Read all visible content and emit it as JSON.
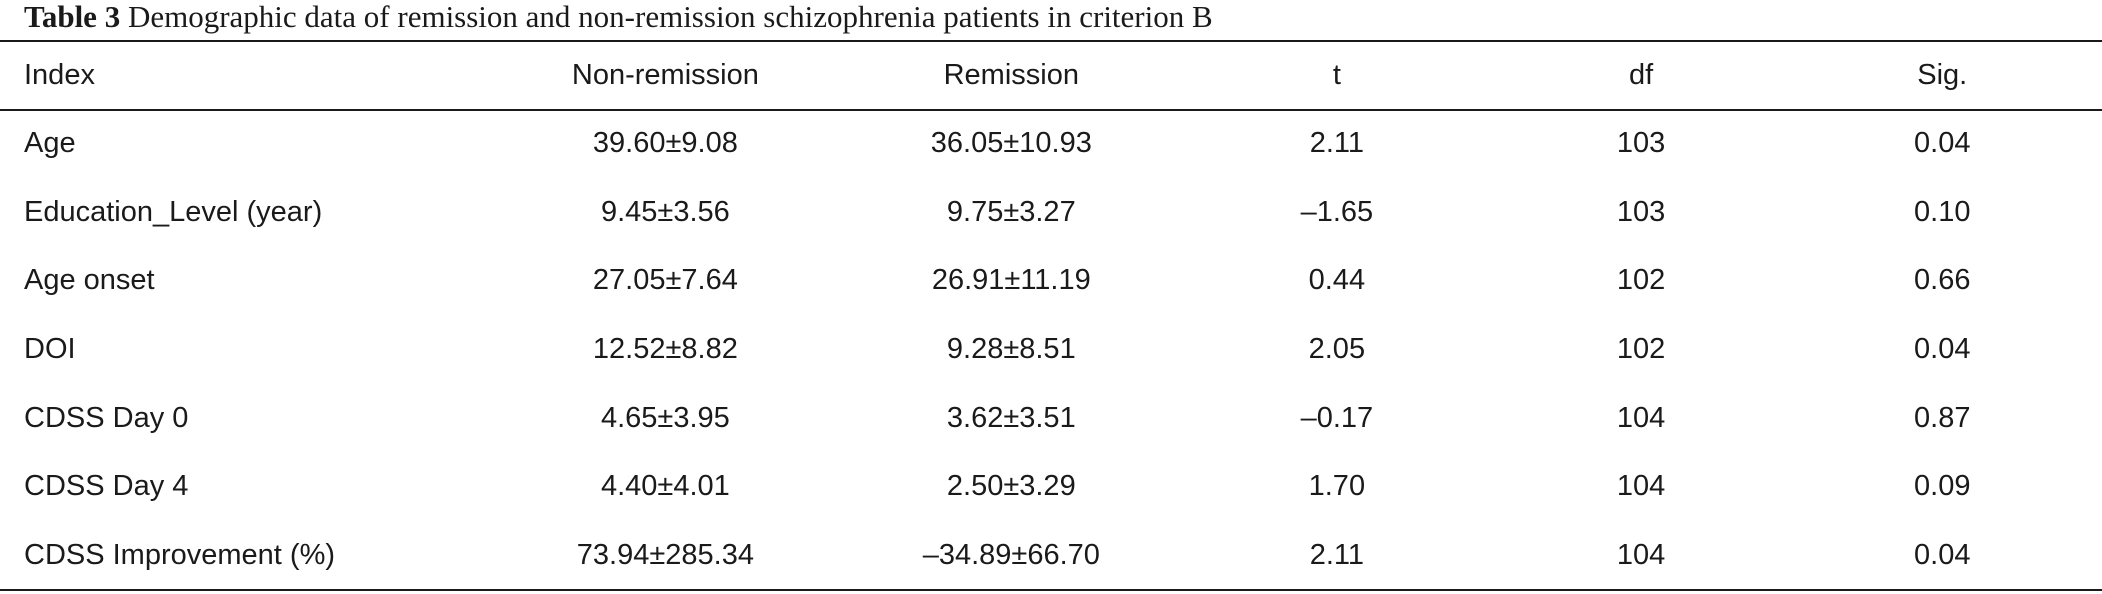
{
  "caption": {
    "label": "Table 3",
    "text": "Demographic data of remission and non-remission schizophrenia patients in criterion B"
  },
  "table": {
    "headers": [
      "Index",
      "Non-remission",
      "Remission",
      "t",
      "df",
      "Sig."
    ],
    "rows": [
      [
        "Age",
        "39.60±9.08",
        "36.05±10.93",
        "2.11",
        "103",
        "0.04"
      ],
      [
        "Education_Level (year)",
        "9.45±3.56",
        "9.75±3.27",
        "–1.65",
        "103",
        "0.10"
      ],
      [
        "Age onset",
        "27.05±7.64",
        "26.91±11.19",
        "0.44",
        "102",
        "0.66"
      ],
      [
        "DOI",
        "12.52±8.82",
        "9.28±8.51",
        "2.05",
        "102",
        "0.04"
      ],
      [
        "CDSS Day 0",
        "4.65±3.95",
        "3.62±3.51",
        "–0.17",
        "104",
        "0.87"
      ],
      [
        "CDSS Day 4",
        "4.40±4.01",
        "2.50±3.29",
        "1.70",
        "104",
        "0.09"
      ],
      [
        "CDSS Improvement (%)",
        "73.94±285.34",
        "–34.89±66.70",
        "2.11",
        "104",
        "0.04"
      ]
    ]
  }
}
